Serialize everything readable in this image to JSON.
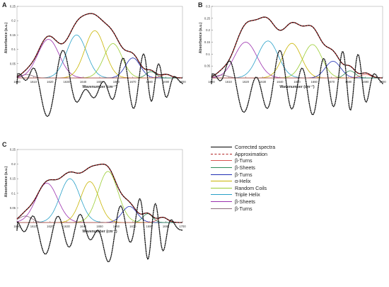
{
  "legend": [
    {
      "label": "Corrected spectra",
      "color": "#000000",
      "style": "solid-thick"
    },
    {
      "label": "Approximation",
      "color": "#b22222",
      "style": "dashed"
    },
    {
      "label": "β-Turns",
      "color": "#d9534f",
      "style": "solid"
    },
    {
      "label": "β-Sheets",
      "color": "#2e8b57",
      "style": "solid"
    },
    {
      "label": "β-Turns",
      "color": "#1f2fb5",
      "style": "solid"
    },
    {
      "label": "α-Helix",
      "color": "#c8b400",
      "style": "solid"
    },
    {
      "label": "Random Coils",
      "color": "#9acd32",
      "style": "solid"
    },
    {
      "label": "Triple Helix",
      "color": "#28a0c8",
      "style": "solid"
    },
    {
      "label": "β-Sheets",
      "color": "#9b2fae",
      "style": "solid"
    },
    {
      "label": "β-Turns",
      "color": "#8b6b7b",
      "style": "solid"
    }
  ],
  "chart_data": [
    {
      "panel": "A",
      "type": "line",
      "xlabel": "Wavenumber (cm⁻¹)",
      "ylabel": "Absorbance (a.u.)",
      "xlim": [
        1600,
        1700
      ],
      "ylim": [
        0,
        0.25
      ],
      "xticks": [
        "1600",
        "1610",
        "1620",
        "1630",
        "1640",
        "1650",
        "1660",
        "1670",
        "1680",
        "1690",
        "1700"
      ],
      "yticks": [
        "0.05",
        "0.1",
        "0.15",
        "0.2",
        "0.25"
      ],
      "spectrum_max": 0.225,
      "components": [
        {
          "center": 1606,
          "height": 0.012,
          "width": 3.5,
          "color": "#8b6b7b"
        },
        {
          "center": 1619,
          "height": 0.135,
          "width": 6.5,
          "color": "#9b2fae"
        },
        {
          "center": 1636,
          "height": 0.15,
          "width": 6.0,
          "color": "#28a0c8"
        },
        {
          "center": 1647,
          "height": 0.165,
          "width": 6.0,
          "color": "#c8b400"
        },
        {
          "center": 1658,
          "height": 0.12,
          "width": 5.5,
          "color": "#9acd32"
        },
        {
          "center": 1670,
          "height": 0.07,
          "width": 4.5,
          "color": "#1f2fb5"
        },
        {
          "center": 1681,
          "height": 0.022,
          "width": 3.0,
          "color": "#2e8b57"
        },
        {
          "center": 1690,
          "height": 0.012,
          "width": 3.0,
          "color": "#d9534f"
        }
      ]
    },
    {
      "panel": "B",
      "type": "line",
      "xlabel": "Wavenumber (cm⁻¹)",
      "ylabel": "Absorbance (a.u.)",
      "xlim": [
        1600,
        1700
      ],
      "ylim": [
        0,
        0.3
      ],
      "xticks": [
        "1600",
        "1610",
        "1620",
        "1630",
        "1640",
        "1650",
        "1660",
        "1670",
        "1680",
        "1690",
        "1700"
      ],
      "yticks": [
        "0.05",
        "0.1",
        "0.15",
        "0.2",
        "0.25",
        "0.3"
      ],
      "spectrum_max": 0.255,
      "components": [
        {
          "center": 1606,
          "height": 0.012,
          "width": 3.5,
          "color": "#8b6b7b"
        },
        {
          "center": 1620,
          "height": 0.15,
          "width": 6.5,
          "color": "#9b2fae"
        },
        {
          "center": 1633,
          "height": 0.155,
          "width": 6.0,
          "color": "#28a0c8"
        },
        {
          "center": 1647,
          "height": 0.145,
          "width": 5.5,
          "color": "#c8b400"
        },
        {
          "center": 1659,
          "height": 0.14,
          "width": 5.5,
          "color": "#9acd32"
        },
        {
          "center": 1671,
          "height": 0.07,
          "width": 4.5,
          "color": "#1f2fb5"
        },
        {
          "center": 1681,
          "height": 0.03,
          "width": 3.0,
          "color": "#2e8b57"
        },
        {
          "center": 1690,
          "height": 0.015,
          "width": 3.0,
          "color": "#d9534f"
        }
      ]
    },
    {
      "panel": "C",
      "type": "line",
      "xlabel": "Wavenumber (cm⁻¹)",
      "ylabel": "Absorbance (a.u.)",
      "xlim": [
        1600,
        1700
      ],
      "ylim": [
        0,
        0.25
      ],
      "xticks": [
        "1600",
        "1610",
        "1620",
        "1630",
        "1640",
        "1650",
        "1660",
        "1670",
        "1680",
        "1690",
        "1700"
      ],
      "yticks": [
        "0.05",
        "0.1",
        "0.15",
        "0.2",
        "0.25"
      ],
      "spectrum_max": 0.2,
      "components": [
        {
          "center": 1605,
          "height": 0.022,
          "width": 4.0,
          "color": "#8b6b7b"
        },
        {
          "center": 1618,
          "height": 0.135,
          "width": 6.5,
          "color": "#9b2fae"
        },
        {
          "center": 1632,
          "height": 0.15,
          "width": 6.0,
          "color": "#28a0c8"
        },
        {
          "center": 1644,
          "height": 0.14,
          "width": 5.5,
          "color": "#c8b400"
        },
        {
          "center": 1655,
          "height": 0.175,
          "width": 6.0,
          "color": "#9acd32"
        },
        {
          "center": 1668,
          "height": 0.055,
          "width": 4.5,
          "color": "#1f2fb5"
        },
        {
          "center": 1679,
          "height": 0.03,
          "width": 3.0,
          "color": "#2e8b57"
        },
        {
          "center": 1688,
          "height": 0.018,
          "width": 3.0,
          "color": "#d9534f"
        }
      ]
    }
  ]
}
